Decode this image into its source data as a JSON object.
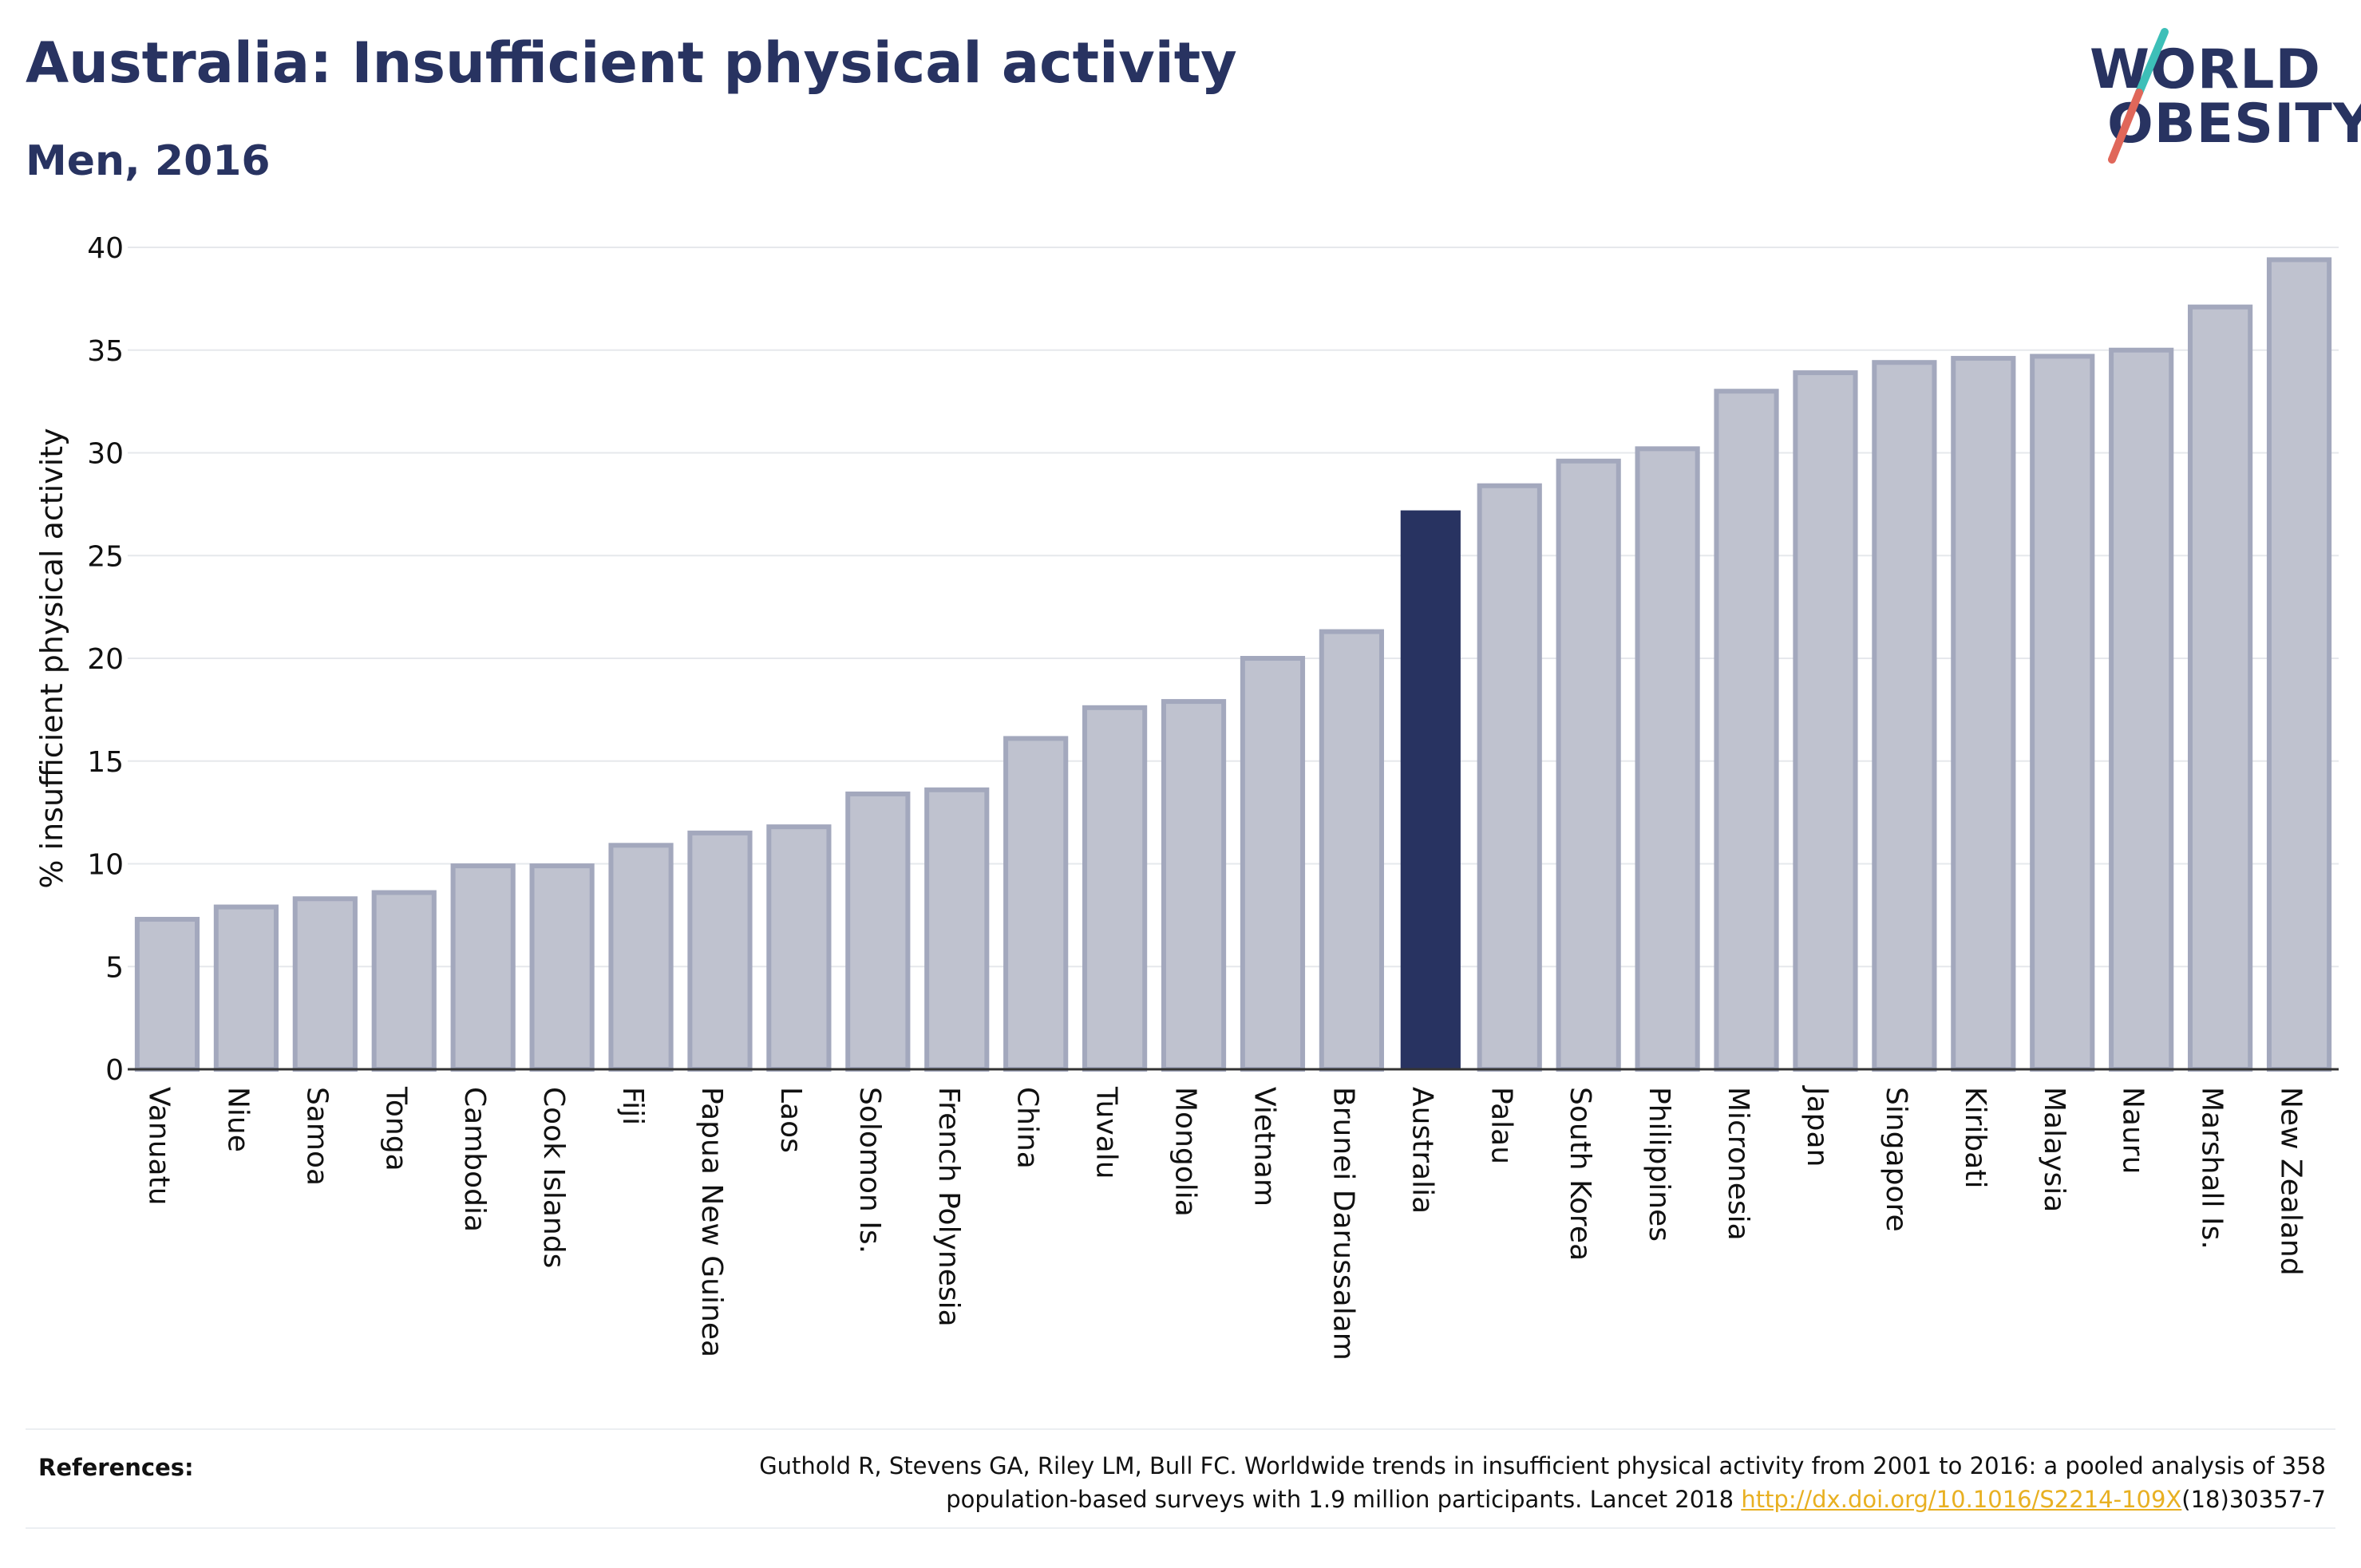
{
  "header": {
    "title": "Australia: Insufficient physical activity",
    "subtitle": "Men, 2016"
  },
  "logo": {
    "line1": "WORLD",
    "line2": "OBESITY",
    "accent_teal": "#3dbfb8",
    "accent_red": "#e0675a"
  },
  "colors": {
    "highlight": "#283361",
    "bar_fill": "#bfc2cf",
    "bar_stroke": "#a3a8bd",
    "text": "#111111",
    "link": "#e8b022"
  },
  "chart_data": {
    "type": "bar",
    "title": "Australia: Insufficient physical activity",
    "subtitle": "Men, 2016",
    "xlabel": "",
    "ylabel": "% insufficient physical activity",
    "ylim": [
      0,
      40
    ],
    "yticks": [
      0,
      5,
      10,
      15,
      20,
      25,
      30,
      35,
      40
    ],
    "grid": true,
    "highlight": "Australia",
    "categories": [
      "Vanuatu",
      "Niue",
      "Samoa",
      "Tonga",
      "Cambodia",
      "Cook Islands",
      "Fiji",
      "Papua New Guinea",
      "Laos",
      "Solomon Is.",
      "French Polynesia",
      "China",
      "Tuvalu",
      "Mongolia",
      "Vietnam",
      "Brunei Darussalam",
      "Australia",
      "Palau",
      "South Korea",
      "Philippines",
      "Micronesia",
      "Japan",
      "Singapore",
      "Kiribati",
      "Malaysia",
      "Nauru",
      "Marshall Is.",
      "New Zealand"
    ],
    "values": [
      7.3,
      7.9,
      8.3,
      8.6,
      9.9,
      9.9,
      10.9,
      11.5,
      11.8,
      13.4,
      13.6,
      16.1,
      17.6,
      17.9,
      20.0,
      21.3,
      27.2,
      28.4,
      29.6,
      30.2,
      33.0,
      33.9,
      34.4,
      34.6,
      34.7,
      35.0,
      37.1,
      39.4
    ]
  },
  "references": {
    "label": "References:",
    "text_line1": "Guthold R, Stevens GA, Riley LM, Bull FC. Worldwide trends in insufficient physical activity from 2001 to 2016: a pooled analysis of 358",
    "text_line2_prefix": "population-based surveys with 1.9 million participants. Lancet 2018 ",
    "link_text": "http://dx.doi.org/10.1016/S2214-109X",
    "text_line2_suffix": "(18)30357-7"
  }
}
